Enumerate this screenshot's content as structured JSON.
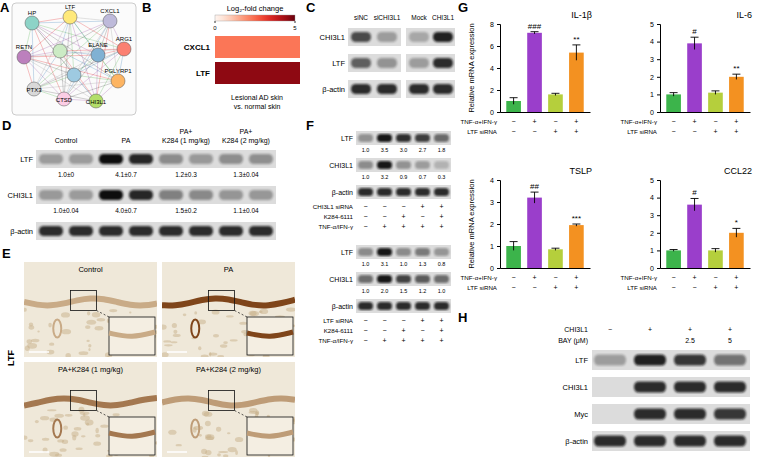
{
  "panels": {
    "A": {
      "letter": "A",
      "nodes": [
        "HP",
        "LTF",
        "CXCL1",
        "ARG1",
        "ELANE",
        "PGLYRP1",
        "CHI3L1",
        "CTSD",
        "PTX3",
        "RETN"
      ]
    },
    "B": {
      "letter": "B",
      "title": "Log₂-fold change",
      "rows": [
        "CXCL1",
        "LTF"
      ],
      "values": [
        2.3,
        4.6
      ],
      "color_range": [
        0,
        5
      ],
      "color_ticks": [
        0,
        5
      ],
      "caption": [
        "Lesional AD skin",
        "vs. normal skin"
      ]
    },
    "C": {
      "letter": "C",
      "lanes": [
        "siNC",
        "siCHI3L1",
        "Mock",
        "CHI3L1"
      ],
      "rows": [
        "CHI3L1",
        "LTF",
        "β-actin"
      ]
    },
    "D": {
      "letter": "D",
      "groups": [
        [
          "Control"
        ],
        [
          "PA"
        ],
        [
          "PA+",
          "K284 (1 mg/kg)"
        ],
        [
          "PA+",
          "K284 (2 mg/kg)"
        ]
      ],
      "rows": [
        {
          "label": "LTF",
          "values": [
            1.0,
            4.1,
            1.2,
            1.3
          ],
          "errors": [
            0,
            0.7,
            0.3,
            0.04
          ],
          "value_labels": [
            "1.0±0",
            "4.1±0.7",
            "1.2±0.3",
            "1.3±0.04"
          ]
        },
        {
          "label": "CHI3L1",
          "values": [
            1.0,
            4.0,
            1.5,
            1.1
          ],
          "errors": [
            0.04,
            0.7,
            0.2,
            0.04
          ],
          "value_labels": [
            "1.0±0.04",
            "4.0±0.7",
            "1.5±0.2",
            "1.1±0.04"
          ]
        },
        {
          "label": "β-actin"
        }
      ]
    },
    "E": {
      "letter": "E",
      "stain": "LTF",
      "images": [
        "Control",
        "PA",
        "PA+K284 (1 mg/kg)",
        "PA+K284 (2 mg/kg)"
      ]
    },
    "F": {
      "letter": "F",
      "blots": [
        {
          "rows": [
            {
              "label": "LTF",
              "values": [
                1.0,
                3.5,
                3.0,
                2.7,
                1.8
              ],
              "value_labels": [
                "1.0",
                "3.5",
                "3.0",
                "2.7",
                "1.8"
              ]
            },
            {
              "label": "CHI3L1",
              "values": [
                1.0,
                3.2,
                0.9,
                0.7,
                0.3
              ],
              "value_labels": [
                "1.0",
                "3.2",
                "0.9",
                "0.7",
                "0.3"
              ]
            },
            {
              "label": "β-actin"
            }
          ],
          "conditions": [
            {
              "label": "CHI3L1 siRNA",
              "signs": [
                "−",
                "−",
                "−",
                "+",
                "+"
              ]
            },
            {
              "label": "K284-6111",
              "signs": [
                "−",
                "−",
                "+",
                "−",
                "+"
              ]
            },
            {
              "label": "TNF-α/IFN-γ",
              "signs": [
                "−",
                "+",
                "+",
                "+",
                "+"
              ]
            }
          ]
        },
        {
          "rows": [
            {
              "label": "LTF",
              "values": [
                1.0,
                3.1,
                1.0,
                1.3,
                0.8
              ],
              "value_labels": [
                "1.0",
                "3.1",
                "1.0",
                "1.3",
                "0.8"
              ]
            },
            {
              "label": "CHI3L1",
              "values": [
                1.0,
                2.0,
                1.5,
                1.2,
                1.0
              ],
              "value_labels": [
                "1.0",
                "2.0",
                "1.5",
                "1.2",
                "1.0"
              ]
            },
            {
              "label": "β-actin"
            }
          ],
          "conditions": [
            {
              "label": "LTF siRNA",
              "signs": [
                "−",
                "−",
                "−",
                "+",
                "+"
              ]
            },
            {
              "label": "K284-6111",
              "signs": [
                "−",
                "−",
                "+",
                "−",
                "+"
              ]
            },
            {
              "label": "TNF-α/IFN-γ",
              "signs": [
                "−",
                "+",
                "+",
                "+",
                "+"
              ]
            }
          ]
        }
      ]
    },
    "G": {
      "letter": "G"
    },
    "H": {
      "letter": "H",
      "conditions": [
        {
          "label": "CHI3L1",
          "signs": [
            "−",
            "+",
            "+",
            "+"
          ]
        },
        {
          "label": "BAY (μM)",
          "signs": [
            null,
            null,
            "2.5",
            "5"
          ]
        }
      ],
      "rows": [
        "LTF",
        "CHI3L1",
        "Myc",
        "β-actin"
      ]
    }
  },
  "chart_data": [
    {
      "type": "bar",
      "title": "IL-1β",
      "y_label": "Relative mRNA expression",
      "categories": [
        null,
        null,
        null,
        null
      ],
      "values": [
        1.0,
        7.2,
        1.6,
        5.4
      ],
      "errors": [
        0.3,
        0.1,
        0.1,
        0.7
      ],
      "colors": [
        "#3cb44b",
        "#9a3ecb",
        "#b5cf3c",
        "#f39121"
      ],
      "ylim": [
        0,
        8
      ],
      "yticks": [
        0,
        2,
        4,
        6,
        8
      ],
      "annotations": [
        null,
        "###",
        null,
        "**"
      ],
      "conditions": [
        {
          "label": "TNF-α+IFN-γ",
          "signs": [
            "−",
            "+",
            "−",
            "+"
          ]
        },
        {
          "label": "LTF siRNA",
          "signs": [
            "−",
            "−",
            "+",
            "+"
          ]
        }
      ]
    },
    {
      "type": "bar",
      "title": "IL-6",
      "categories": [
        null,
        null,
        null,
        null
      ],
      "values": [
        1.0,
        3.9,
        1.1,
        2.0
      ],
      "errors": [
        0.1,
        0.35,
        0.1,
        0.15
      ],
      "colors": [
        "#3cb44b",
        "#9a3ecb",
        "#b5cf3c",
        "#f39121"
      ],
      "ylim": [
        0,
        5
      ],
      "yticks": [
        0,
        1,
        2,
        3,
        4,
        5
      ],
      "annotations": [
        null,
        "#",
        null,
        "**"
      ],
      "conditions": [
        {
          "label": "TNF-α+IFN-γ",
          "signs": [
            "−",
            "+",
            "−",
            "+"
          ]
        },
        {
          "label": "LTF siRNA",
          "signs": [
            "−",
            "−",
            "+",
            "+"
          ]
        }
      ]
    },
    {
      "type": "bar",
      "title": "TSLP",
      "y_label": "Relative mRNA expression",
      "categories": [
        null,
        null,
        null,
        null
      ],
      "values": [
        1.0,
        3.2,
        0.85,
        1.95
      ],
      "errors": [
        0.2,
        0.25,
        0.05,
        0.05
      ],
      "colors": [
        "#3cb44b",
        "#9a3ecb",
        "#b5cf3c",
        "#f39121"
      ],
      "ylim": [
        0,
        4
      ],
      "yticks": [
        0,
        1,
        2,
        3,
        4
      ],
      "annotations": [
        null,
        "##",
        null,
        "***"
      ],
      "conditions": [
        {
          "label": "TNF-α+IFN-γ",
          "signs": [
            "−",
            "+",
            "−",
            "+"
          ]
        },
        {
          "label": "LTF siRNA",
          "signs": [
            "−",
            "−",
            "+",
            "+"
          ]
        }
      ]
    },
    {
      "type": "bar",
      "title": "CCL22",
      "categories": [
        null,
        null,
        null,
        null
      ],
      "values": [
        1.0,
        3.6,
        1.0,
        2.0
      ],
      "errors": [
        0.05,
        0.35,
        0.1,
        0.25
      ],
      "colors": [
        "#3cb44b",
        "#9a3ecb",
        "#b5cf3c",
        "#f39121"
      ],
      "ylim": [
        0,
        5
      ],
      "yticks": [
        0,
        1,
        2,
        3,
        4,
        5
      ],
      "annotations": [
        null,
        "#",
        null,
        "*"
      ],
      "conditions": [
        {
          "label": "TNF-α+IFN-γ",
          "signs": [
            "−",
            "+",
            "−",
            "+"
          ]
        },
        {
          "label": "LTF siRNA",
          "signs": [
            "−",
            "−",
            "+",
            "+"
          ]
        }
      ]
    }
  ]
}
